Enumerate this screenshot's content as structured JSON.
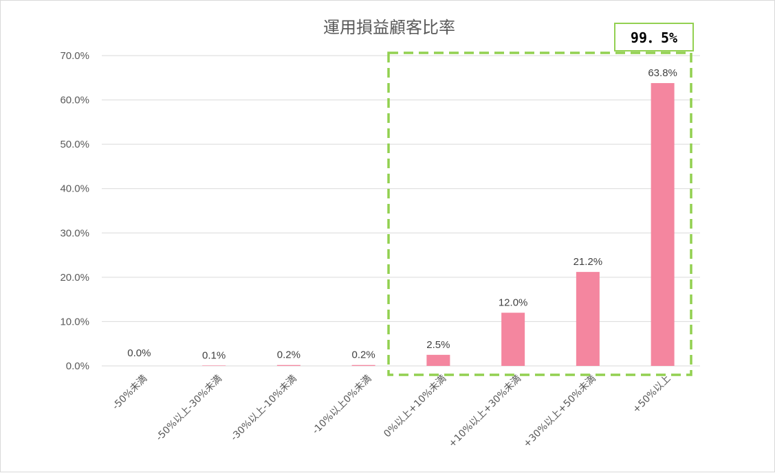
{
  "chart_data": {
    "type": "bar",
    "title": "運用損益顧客比率",
    "categories": [
      "-50%未満",
      "-50%以上-30%未満",
      "-30%以上-10%未満",
      "-10%以上0%未満",
      "0%以上+10%未満",
      "+10%以上+30%未満",
      "+30%以上+50%未満",
      "+50%以上"
    ],
    "values": [
      0.0,
      0.1,
      0.2,
      0.2,
      2.5,
      12.0,
      21.2,
      63.8
    ],
    "data_labels": [
      "0.0%",
      "0.1%",
      "0.2%",
      "0.2%",
      "2.5%",
      "12.0%",
      "21.2%",
      "63.8%"
    ],
    "ylim": [
      0,
      70
    ],
    "yticks": [
      "0.0%",
      "10.0%",
      "20.0%",
      "30.0%",
      "40.0%",
      "50.0%",
      "60.0%",
      "70.0%"
    ],
    "grid": true,
    "bar_color": "#f4869f",
    "annotation": {
      "text": "99．5%",
      "highlight_categories": [
        "0%以上+10%未満",
        "+10%以上+30%未満",
        "+30%以上+50%未満",
        "+50%以上"
      ],
      "color": "#92d050"
    }
  }
}
